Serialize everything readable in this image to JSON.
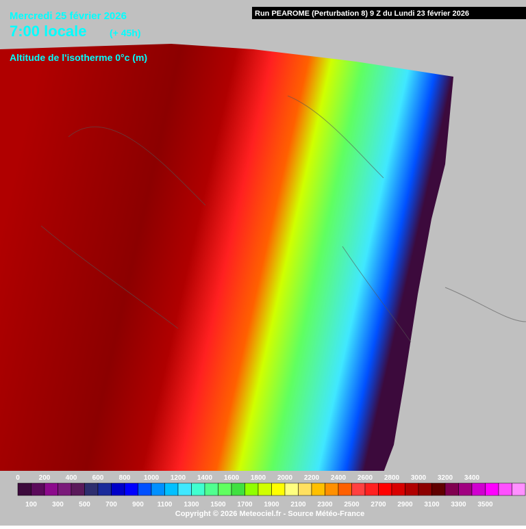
{
  "header": {
    "date": "Mercredi 25 février 2026",
    "time": "7:00 locale",
    "lead": "(+ 45h)",
    "title": "Altitude de l'isotherme 0°c (m)"
  },
  "run": "Run PEAROME (Perturbation 8) 9 Z du Lundi 23 février 2026",
  "legend": {
    "top_labels": [
      0,
      200,
      400,
      600,
      800,
      1000,
      1200,
      1400,
      1600,
      1800,
      2000,
      2200,
      2400,
      2600,
      2800,
      3000,
      3200,
      3400
    ],
    "bottom_labels": [
      100,
      300,
      500,
      700,
      900,
      1100,
      1300,
      1500,
      1700,
      1900,
      2100,
      2300,
      2500,
      2700,
      2900,
      3100,
      3300,
      3500
    ],
    "colors": [
      "#3c0a3c",
      "#5a0a5a",
      "#8c0a8c",
      "#7a1a7a",
      "#5a1a5a",
      "#2e2e6e",
      "#1a2a9a",
      "#0000c8",
      "#0000ff",
      "#0050ff",
      "#0090ff",
      "#00c0ff",
      "#40e8ff",
      "#40ffd0",
      "#50ff90",
      "#60ff60",
      "#40e040",
      "#90ff00",
      "#d0ff00",
      "#ffff00",
      "#ffff80",
      "#ffe060",
      "#ffc000",
      "#ff9000",
      "#ff6000",
      "#ff4040",
      "#ff2020",
      "#ff0000",
      "#d80000",
      "#b00000",
      "#8c0000",
      "#600000",
      "#800050",
      "#a00080",
      "#d000d0",
      "#ff00ff",
      "#ff50ff",
      "#ff90ff"
    ]
  },
  "copyright": "Copyright © 2026 Meteociel.fr - Source Météo-France"
}
